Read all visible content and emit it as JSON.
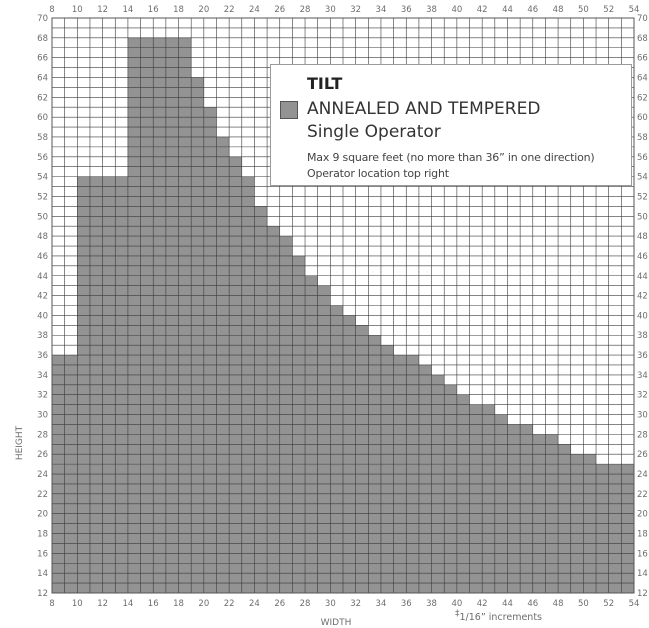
{
  "chart_data": {
    "type": "area",
    "x_step_label": 2,
    "y_step_label": 2,
    "xlim": [
      8,
      54
    ],
    "ylim": [
      12,
      70
    ],
    "xlabel": "WIDTH",
    "ylabel": "HEIGHT",
    "x_ticks": [
      8,
      10,
      12,
      14,
      16,
      18,
      20,
      22,
      24,
      26,
      28,
      30,
      32,
      34,
      36,
      38,
      40,
      42,
      44,
      46,
      48,
      50,
      52,
      54
    ],
    "y_ticks": [
      12,
      14,
      16,
      18,
      20,
      22,
      24,
      26,
      28,
      30,
      32,
      34,
      36,
      38,
      40,
      42,
      44,
      46,
      48,
      50,
      52,
      54,
      56,
      58,
      60,
      62,
      64,
      66,
      68,
      70
    ],
    "series": [
      {
        "name": "ANNEALED AND TEMPERED",
        "color": "#939393",
        "x": [
          8,
          10,
          12,
          14,
          15,
          16,
          17,
          18,
          19,
          20,
          21,
          22,
          23,
          24,
          25,
          26,
          27,
          28,
          29,
          30,
          31,
          32,
          33,
          34,
          35,
          36,
          37,
          38,
          39,
          40,
          41,
          42,
          43,
          44,
          45,
          46,
          47,
          48,
          49,
          50,
          51,
          52,
          53,
          54
        ],
        "y": [
          36,
          54,
          54,
          68,
          68,
          68,
          68,
          68,
          64,
          61,
          58,
          56,
          54,
          51,
          49,
          48,
          46,
          44,
          43,
          41,
          40,
          39,
          38,
          37,
          36,
          36,
          35,
          34,
          33,
          32,
          31,
          31,
          30,
          29,
          29,
          28,
          28,
          27,
          26,
          26,
          25,
          25,
          25,
          25
        ]
      }
    ],
    "grid": true,
    "legend": {
      "placement": "top-right",
      "title": "TILT",
      "series_label": "ANNEALED AND TEMPERED",
      "subtitle": "Single Operator",
      "note1": "Max 9 square feet (no more than 36” in one direction)",
      "note2": "Operator location top right"
    },
    "footnote_symbol": "‡",
    "footnote": "1/16” increments"
  }
}
